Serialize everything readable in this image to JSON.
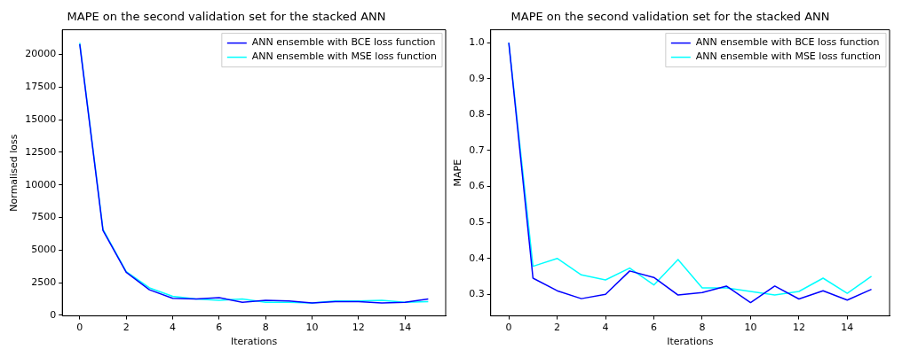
{
  "chart_data": [
    {
      "type": "line",
      "title": "MAPE on the second validation set for the stacked ANN",
      "xlabel": "Iterations",
      "ylabel": "Normalised loss",
      "x": [
        0,
        1,
        2,
        3,
        4,
        5,
        6,
        7,
        8,
        9,
        10,
        11,
        12,
        13,
        14,
        15
      ],
      "xlim": [
        -0.75,
        15.75
      ],
      "xticks": [
        0,
        2,
        4,
        6,
        8,
        10,
        12,
        14
      ],
      "ylim": [
        -50,
        21900
      ],
      "yticks": [
        0,
        2500,
        5000,
        7500,
        10000,
        12500,
        15000,
        17500,
        20000
      ],
      "legend": "top right",
      "grid": false,
      "series": [
        {
          "name": "ANN ensemble with BCE loss function",
          "color": "#0000ff",
          "values": [
            20800,
            6500,
            3300,
            1950,
            1300,
            1250,
            1350,
            1000,
            1150,
            1100,
            950,
            1050,
            1050,
            950,
            1000,
            1250
          ]
        },
        {
          "name": "ANN ensemble with MSE loss function",
          "color": "#00ffff",
          "values": [
            20900,
            6600,
            3350,
            2100,
            1450,
            1250,
            1150,
            1250,
            1000,
            1000,
            950,
            1100,
            1100,
            1150,
            1000,
            1050
          ]
        }
      ]
    },
    {
      "type": "line",
      "title": "MAPE on the second validation set for the stacked ANN",
      "xlabel": "Iterations",
      "ylabel": "MAPE",
      "x": [
        0,
        1,
        2,
        3,
        4,
        5,
        6,
        7,
        8,
        9,
        10,
        11,
        12,
        13,
        14,
        15
      ],
      "xlim": [
        -0.75,
        15.75
      ],
      "xticks": [
        0,
        2,
        4,
        6,
        8,
        10,
        12,
        14
      ],
      "ylim": [
        0.24,
        1.036
      ],
      "yticks": [
        {
          "value": 0.3,
          "label": "0.3"
        },
        {
          "value": 0.4,
          "label": "0.4"
        },
        {
          "value": 0.5,
          "label": "0.5"
        },
        {
          "value": 0.6,
          "label": "0.6"
        },
        {
          "value": 0.7,
          "label": "0.7"
        },
        {
          "value": 0.8,
          "label": "0.8"
        },
        {
          "value": 0.9,
          "label": "0.9"
        },
        {
          "value": 1.0,
          "label": "1.0"
        }
      ],
      "legend": "top right",
      "grid": false,
      "series": [
        {
          "name": "ANN ensemble with BCE loss function",
          "color": "#0000ff",
          "values": [
            1.0,
            0.345,
            0.31,
            0.288,
            0.3,
            0.365,
            0.347,
            0.298,
            0.305,
            0.323,
            0.277,
            0.323,
            0.287,
            0.31,
            0.284,
            0.314
          ]
        },
        {
          "name": "ANN ensemble with MSE loss function",
          "color": "#00ffff",
          "values": [
            1.0,
            0.378,
            0.4,
            0.354,
            0.34,
            0.373,
            0.326,
            0.397,
            0.318,
            0.318,
            0.308,
            0.298,
            0.308,
            0.345,
            0.303,
            0.35
          ]
        }
      ]
    }
  ]
}
